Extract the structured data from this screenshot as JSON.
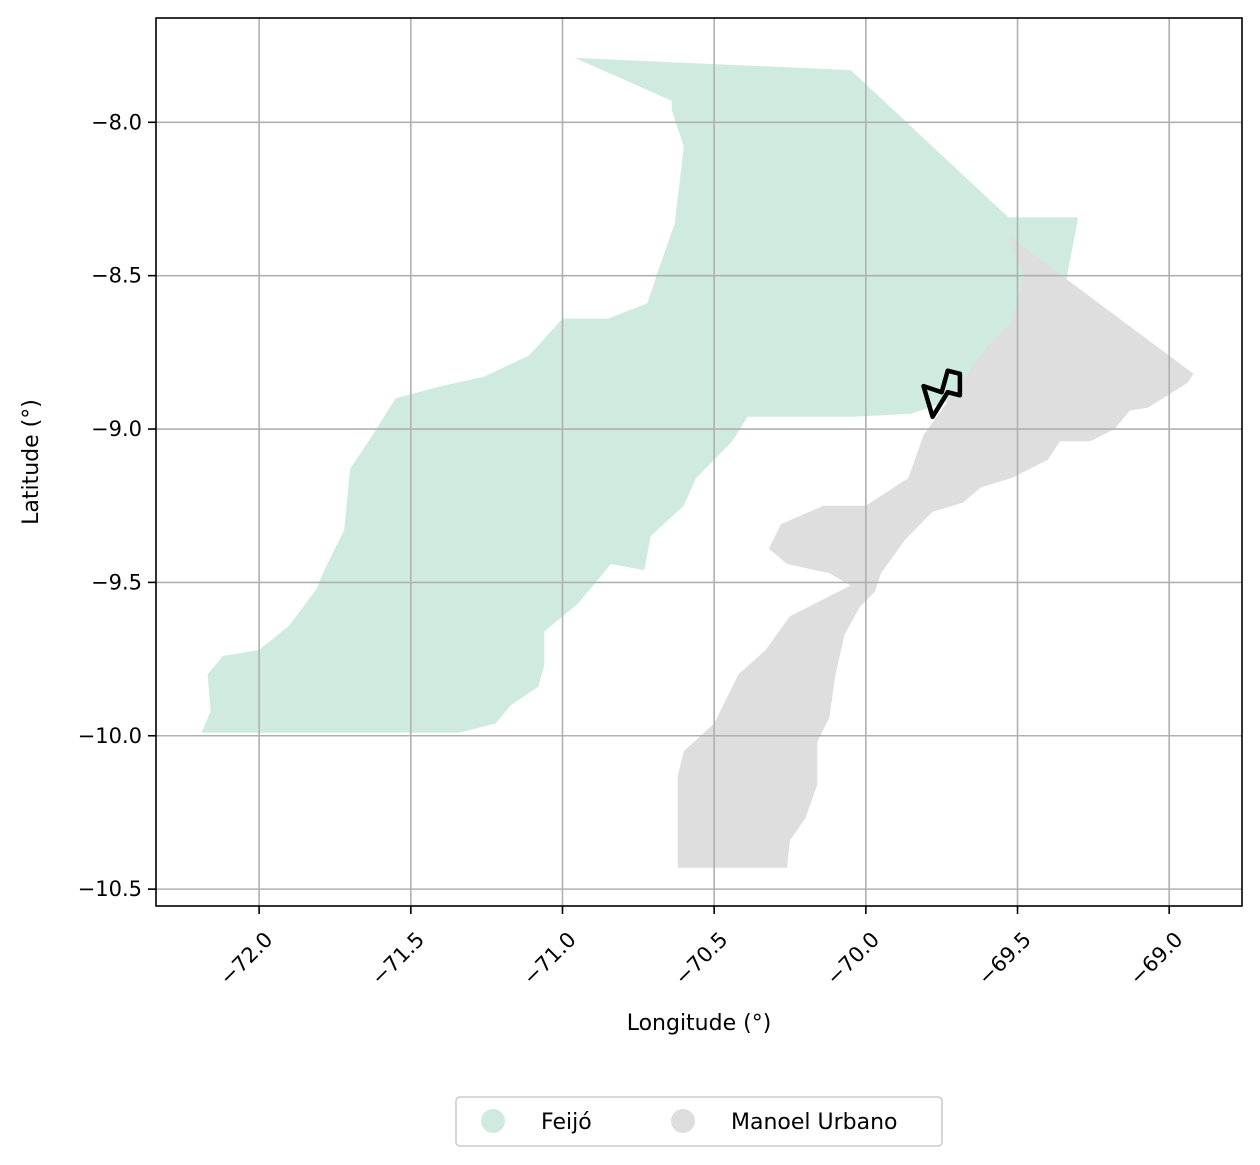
{
  "chart_data": {
    "type": "map",
    "xlabel": "Longitude (°)",
    "ylabel": "Latitude (°)",
    "xlim": [
      -72.34,
      -68.76
    ],
    "ylim": [
      -10.555,
      -7.66
    ],
    "xticks": [
      -72.0,
      -71.5,
      -71.0,
      -70.5,
      -70.0,
      -69.5,
      -69.0
    ],
    "xtick_labels": [
      "−72.0",
      "−71.5",
      "−71.0",
      "−70.5",
      "−70.0",
      "−69.5",
      "−69.0"
    ],
    "yticks": [
      -8.0,
      -8.5,
      -9.0,
      -9.5,
      -10.0,
      -10.5
    ],
    "ytick_labels": [
      "−8.0",
      "−8.5",
      "−9.0",
      "−9.5",
      "−10.0",
      "−10.5"
    ],
    "grid": true,
    "legend_position": "bottom-center",
    "regions": [
      {
        "name": "Feijó",
        "color": "#cfebdf",
        "polygon": [
          [
            -70.96,
            -7.79
          ],
          [
            -70.05,
            -7.83
          ],
          [
            -69.53,
            -8.31
          ],
          [
            -69.3,
            -8.31
          ],
          [
            -69.35,
            -8.57
          ],
          [
            -69.42,
            -8.61
          ],
          [
            -69.45,
            -8.72
          ],
          [
            -69.59,
            -8.76
          ],
          [
            -69.66,
            -8.81
          ],
          [
            -69.73,
            -8.91
          ],
          [
            -69.85,
            -8.95
          ],
          [
            -70.04,
            -8.96
          ],
          [
            -70.39,
            -8.96
          ],
          [
            -70.44,
            -9.04
          ],
          [
            -70.5,
            -9.1
          ],
          [
            -70.56,
            -9.16
          ],
          [
            -70.6,
            -9.25
          ],
          [
            -70.71,
            -9.35
          ],
          [
            -70.73,
            -9.46
          ],
          [
            -70.84,
            -9.44
          ],
          [
            -70.95,
            -9.57
          ],
          [
            -71.06,
            -9.66
          ],
          [
            -71.06,
            -9.77
          ],
          [
            -71.08,
            -9.84
          ],
          [
            -71.17,
            -9.9
          ],
          [
            -71.22,
            -9.96
          ],
          [
            -71.34,
            -9.99
          ],
          [
            -72.19,
            -9.99
          ],
          [
            -72.16,
            -9.92
          ],
          [
            -72.17,
            -9.8
          ],
          [
            -72.12,
            -9.74
          ],
          [
            -72.0,
            -9.72
          ],
          [
            -71.9,
            -9.64
          ],
          [
            -71.81,
            -9.52
          ],
          [
            -71.79,
            -9.47
          ],
          [
            -71.72,
            -9.33
          ],
          [
            -71.7,
            -9.13
          ],
          [
            -71.62,
            -9.01
          ],
          [
            -71.55,
            -8.9
          ],
          [
            -71.4,
            -8.86
          ],
          [
            -71.26,
            -8.83
          ],
          [
            -71.11,
            -8.76
          ],
          [
            -71.0,
            -8.64
          ],
          [
            -70.85,
            -8.64
          ],
          [
            -70.72,
            -8.59
          ],
          [
            -70.68,
            -8.47
          ],
          [
            -70.63,
            -8.33
          ],
          [
            -70.6,
            -8.08
          ],
          [
            -70.64,
            -7.96
          ],
          [
            -70.64,
            -7.93
          ]
        ]
      },
      {
        "name": "Manoel Urbano",
        "color": "#dedede",
        "polygon": [
          [
            -69.53,
            -8.37
          ],
          [
            -68.92,
            -8.82
          ],
          [
            -68.94,
            -8.85
          ],
          [
            -69.07,
            -8.93
          ],
          [
            -69.13,
            -8.94
          ],
          [
            -69.18,
            -9.0
          ],
          [
            -69.26,
            -9.04
          ],
          [
            -69.36,
            -9.04
          ],
          [
            -69.4,
            -9.1
          ],
          [
            -69.52,
            -9.16
          ],
          [
            -69.62,
            -9.19
          ],
          [
            -69.68,
            -9.24
          ],
          [
            -69.78,
            -9.27
          ],
          [
            -69.87,
            -9.36
          ],
          [
            -69.95,
            -9.47
          ],
          [
            -69.97,
            -9.53
          ],
          [
            -70.02,
            -9.58
          ],
          [
            -70.07,
            -9.67
          ],
          [
            -70.1,
            -9.8
          ],
          [
            -70.12,
            -9.94
          ],
          [
            -70.16,
            -10.02
          ],
          [
            -70.16,
            -10.16
          ],
          [
            -70.2,
            -10.27
          ],
          [
            -70.25,
            -10.34
          ],
          [
            -70.26,
            -10.43
          ],
          [
            -70.62,
            -10.43
          ],
          [
            -70.62,
            -10.13
          ],
          [
            -70.6,
            -10.05
          ],
          [
            -70.5,
            -9.96
          ],
          [
            -70.42,
            -9.8
          ],
          [
            -70.33,
            -9.72
          ],
          [
            -70.25,
            -9.61
          ],
          [
            -70.13,
            -9.55
          ],
          [
            -70.05,
            -9.51
          ],
          [
            -70.12,
            -9.47
          ],
          [
            -70.26,
            -9.44
          ],
          [
            -70.32,
            -9.39
          ],
          [
            -70.28,
            -9.31
          ],
          [
            -70.14,
            -9.25
          ],
          [
            -70.0,
            -9.25
          ],
          [
            -69.86,
            -9.16
          ],
          [
            -69.81,
            -9.02
          ],
          [
            -69.73,
            -8.91
          ],
          [
            -69.66,
            -8.81
          ],
          [
            -69.59,
            -8.72
          ],
          [
            -69.52,
            -8.65
          ],
          [
            -69.48,
            -8.5
          ]
        ]
      }
    ],
    "highlight": {
      "stroke": "#000000",
      "polygon": [
        [
          -69.81,
          -8.86
        ],
        [
          -69.75,
          -8.88
        ],
        [
          -69.73,
          -8.81
        ],
        [
          -69.69,
          -8.82
        ],
        [
          -69.69,
          -8.89
        ],
        [
          -69.73,
          -8.88
        ],
        [
          -69.78,
          -8.96
        ]
      ]
    },
    "legend": [
      {
        "label": "Feijó",
        "color": "#cfebdf"
      },
      {
        "label": "Manoel Urbano",
        "color": "#dedede"
      }
    ]
  }
}
